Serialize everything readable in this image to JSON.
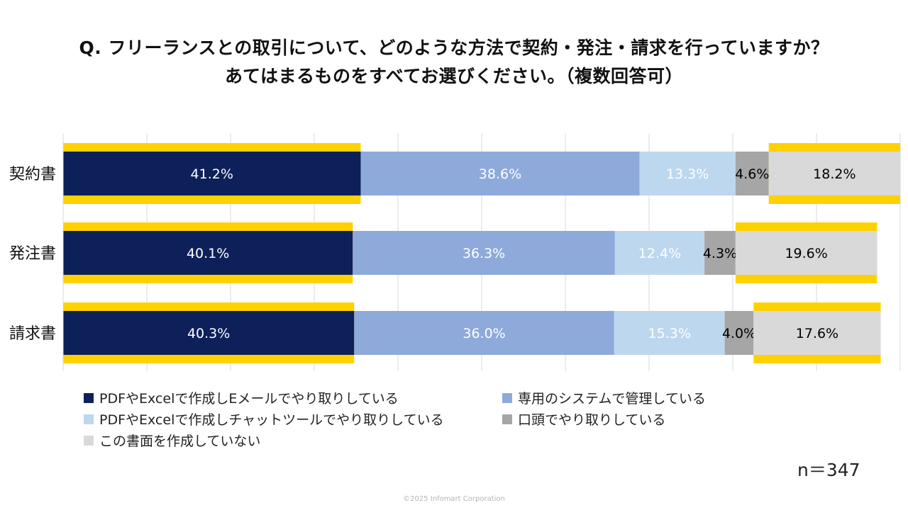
{
  "title": {
    "line1": "Q. フリーランスとの取引について、どのような方法で契約・発注・請求を行っていますか？",
    "line2": "あてはまるものをすべてお選びください。（複数回答可）"
  },
  "chart_data": {
    "type": "bar",
    "orientation": "horizontal",
    "stacked": true,
    "categories": [
      "契約書",
      "発注書",
      "請求書"
    ],
    "series": [
      {
        "name": "PDFやExcelで作成しEメールでやり取りしている",
        "color": "#0d2059",
        "label_color": "#ffffff",
        "values": [
          41.2,
          40.1,
          40.3
        ]
      },
      {
        "name": "専用のシステムで管理している",
        "color": "#8eaadb",
        "label_color": "#ffffff",
        "values": [
          38.6,
          36.3,
          36.0
        ]
      },
      {
        "name": "PDFやExcelで作成しチャットツールでやり取りしている",
        "color": "#bdd7ee",
        "label_color": "#ffffff",
        "values": [
          13.3,
          12.4,
          15.3
        ]
      },
      {
        "name": "口頭でやり取りしている",
        "color": "#a6a6a6",
        "label_color": "#000000",
        "values": [
          4.6,
          4.3,
          4.0
        ]
      },
      {
        "name": "この書面を作成していない",
        "color": "#d9d9d9",
        "label_color": "#000000",
        "values": [
          18.2,
          19.6,
          17.6
        ]
      }
    ],
    "value_suffix": "%",
    "highlight_color": "#ffd100",
    "highlighted_series": [
      0,
      4
    ],
    "grid": true,
    "legend_position": "bottom"
  },
  "legend": [
    {
      "label": "PDFやExcelで作成しEメールでやり取りしている",
      "color": "#0d2059"
    },
    {
      "label": "専用のシステムで管理している",
      "color": "#8eaadb"
    },
    {
      "label": "PDFやExcelで作成しチャットツールでやり取りしている",
      "color": "#bdd7ee"
    },
    {
      "label": "口頭でやり取りしている",
      "color": "#a6a6a6"
    },
    {
      "label": "この書面を作成していない",
      "color": "#d9d9d9"
    }
  ],
  "sample_size": "n＝347",
  "footer": "©2025 Infomart Corporation"
}
